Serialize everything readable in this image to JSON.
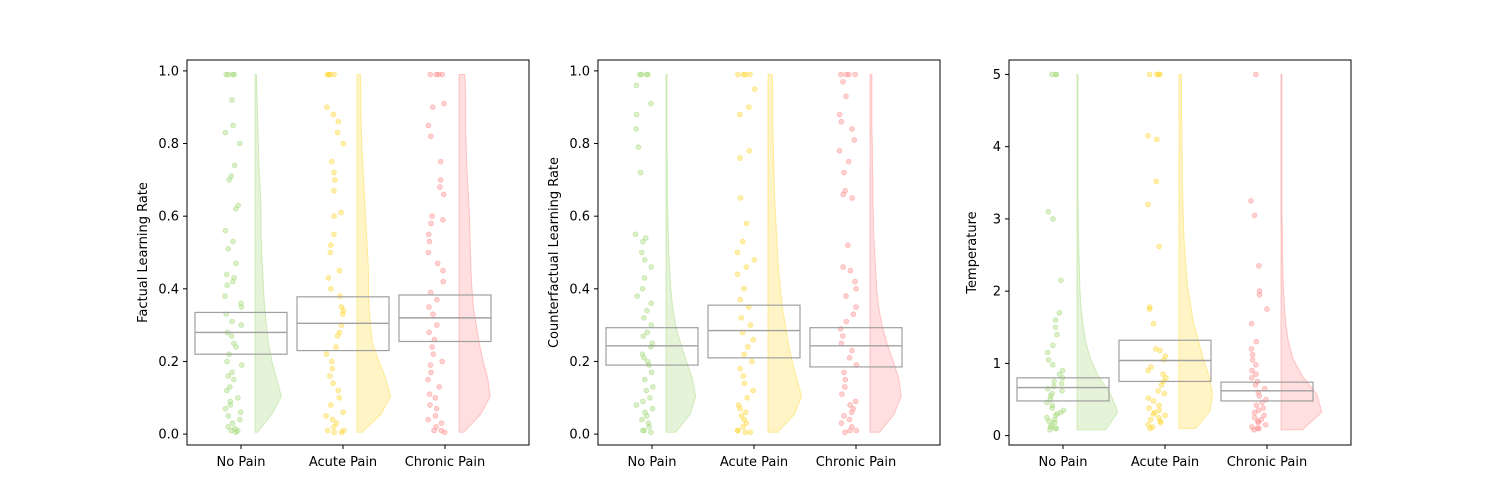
{
  "chart_data": [
    {
      "type": "raincloud",
      "ylabel": "Factual Learning Rate",
      "ylim": [
        -0.03,
        1.03
      ],
      "yticks": [
        0.0,
        0.2,
        0.4,
        0.6,
        0.8,
        1.0
      ],
      "ytick_labels": [
        "0.0",
        "0.2",
        "0.4",
        "0.6",
        "0.8",
        "1.0"
      ],
      "categories": [
        "No Pain",
        "Acute Pain",
        "Chronic Pain"
      ],
      "groups": [
        {
          "name": "No Pain",
          "color": "#a3d977",
          "q1": 0.22,
          "median": 0.28,
          "q3": 0.335,
          "points": [
            0.99,
            0.99,
            0.99,
            0.99,
            0.92,
            0.85,
            0.83,
            0.8,
            0.74,
            0.71,
            0.7,
            0.63,
            0.62,
            0.56,
            0.53,
            0.51,
            0.47,
            0.44,
            0.43,
            0.42,
            0.41,
            0.38,
            0.36,
            0.35,
            0.33,
            0.31,
            0.3,
            0.28,
            0.27,
            0.25,
            0.24,
            0.22,
            0.2,
            0.19,
            0.17,
            0.16,
            0.15,
            0.13,
            0.12,
            0.1,
            0.09,
            0.08,
            0.07,
            0.06,
            0.05,
            0.04,
            0.03,
            0.02,
            0.015,
            0.01,
            0.01,
            0.005
          ],
          "density": [
            0.05,
            0.35,
            0.55,
            0.45,
            0.35,
            0.28,
            0.24,
            0.2,
            0.18,
            0.16,
            0.14,
            0.13,
            0.13,
            0.12,
            0.1,
            0.08,
            0.07,
            0.06,
            0.05,
            0.04,
            0.03
          ]
        },
        {
          "name": "Acute Pain",
          "color": "#ffd633",
          "q1": 0.23,
          "median": 0.305,
          "q3": 0.378,
          "points": [
            0.99,
            0.99,
            0.99,
            0.99,
            0.9,
            0.88,
            0.86,
            0.83,
            0.8,
            0.75,
            0.72,
            0.7,
            0.67,
            0.61,
            0.6,
            0.55,
            0.52,
            0.5,
            0.45,
            0.43,
            0.4,
            0.38,
            0.35,
            0.34,
            0.33,
            0.3,
            0.28,
            0.27,
            0.24,
            0.22,
            0.2,
            0.18,
            0.16,
            0.14,
            0.12,
            0.1,
            0.08,
            0.06,
            0.05,
            0.04,
            0.03,
            0.02,
            0.01,
            0.01,
            0.005,
            0.005
          ],
          "density": [
            0.1,
            0.5,
            0.7,
            0.6,
            0.45,
            0.32,
            0.28,
            0.25,
            0.24,
            0.24,
            0.22,
            0.2,
            0.18,
            0.16,
            0.14,
            0.12,
            0.1,
            0.09,
            0.08,
            0.08,
            0.07
          ]
        },
        {
          "name": "Chronic Pain",
          "color": "#ff8c8c",
          "q1": 0.255,
          "median": 0.32,
          "q3": 0.383,
          "points": [
            0.99,
            0.99,
            0.99,
            0.99,
            0.91,
            0.9,
            0.85,
            0.82,
            0.75,
            0.7,
            0.68,
            0.66,
            0.6,
            0.59,
            0.58,
            0.55,
            0.53,
            0.5,
            0.47,
            0.45,
            0.42,
            0.39,
            0.37,
            0.35,
            0.33,
            0.3,
            0.28,
            0.26,
            0.24,
            0.22,
            0.2,
            0.19,
            0.17,
            0.15,
            0.13,
            0.11,
            0.1,
            0.08,
            0.07,
            0.05,
            0.04,
            0.03,
            0.02,
            0.01,
            0.01,
            0.005
          ],
          "density": [
            0.1,
            0.45,
            0.65,
            0.6,
            0.5,
            0.42,
            0.36,
            0.3,
            0.27,
            0.25,
            0.24,
            0.23,
            0.22,
            0.2,
            0.18,
            0.16,
            0.15,
            0.14,
            0.14,
            0.14,
            0.12
          ]
        }
      ]
    },
    {
      "type": "raincloud",
      "ylabel": "Counterfactual Learning Rate",
      "ylim": [
        -0.03,
        1.03
      ],
      "yticks": [
        0.0,
        0.2,
        0.4,
        0.6,
        0.8,
        1.0
      ],
      "ytick_labels": [
        "0.0",
        "0.2",
        "0.4",
        "0.6",
        "0.8",
        "1.0"
      ],
      "categories": [
        "No Pain",
        "Acute Pain",
        "Chronic Pain"
      ],
      "groups": [
        {
          "name": "No Pain",
          "color": "#a3d977",
          "q1": 0.19,
          "median": 0.243,
          "q3": 0.293,
          "points": [
            0.99,
            0.99,
            0.99,
            0.99,
            0.96,
            0.91,
            0.88,
            0.84,
            0.79,
            0.72,
            0.55,
            0.54,
            0.53,
            0.5,
            0.48,
            0.46,
            0.43,
            0.4,
            0.38,
            0.36,
            0.34,
            0.32,
            0.3,
            0.28,
            0.27,
            0.25,
            0.24,
            0.22,
            0.21,
            0.2,
            0.19,
            0.17,
            0.15,
            0.13,
            0.12,
            0.1,
            0.09,
            0.08,
            0.07,
            0.06,
            0.05,
            0.04,
            0.03,
            0.02,
            0.01,
            0.01,
            0.005
          ],
          "density": [
            0.2,
            0.5,
            0.62,
            0.55,
            0.42,
            0.3,
            0.2,
            0.14,
            0.1,
            0.08,
            0.06,
            0.05,
            0.04,
            0.03,
            0.03,
            0.03,
            0.02,
            0.02,
            0.02,
            0.02,
            0.02
          ]
        },
        {
          "name": "Acute Pain",
          "color": "#ffd633",
          "q1": 0.21,
          "median": 0.285,
          "q3": 0.355,
          "points": [
            0.99,
            0.99,
            0.99,
            0.99,
            0.95,
            0.9,
            0.88,
            0.78,
            0.76,
            0.65,
            0.58,
            0.53,
            0.5,
            0.48,
            0.46,
            0.44,
            0.4,
            0.37,
            0.35,
            0.32,
            0.3,
            0.28,
            0.26,
            0.24,
            0.22,
            0.2,
            0.18,
            0.16,
            0.14,
            0.12,
            0.1,
            0.08,
            0.07,
            0.06,
            0.05,
            0.04,
            0.03,
            0.02,
            0.01,
            0.01,
            0.005,
            0.005
          ],
          "density": [
            0.2,
            0.55,
            0.7,
            0.6,
            0.5,
            0.42,
            0.36,
            0.3,
            0.26,
            0.22,
            0.2,
            0.18,
            0.16,
            0.14,
            0.13,
            0.12,
            0.11,
            0.1,
            0.1,
            0.1,
            0.09
          ]
        },
        {
          "name": "Chronic Pain",
          "color": "#ff8c8c",
          "q1": 0.185,
          "median": 0.243,
          "q3": 0.293,
          "points": [
            0.99,
            0.99,
            0.99,
            0.99,
            0.97,
            0.93,
            0.88,
            0.86,
            0.84,
            0.81,
            0.78,
            0.75,
            0.72,
            0.67,
            0.66,
            0.65,
            0.52,
            0.46,
            0.45,
            0.42,
            0.4,
            0.38,
            0.35,
            0.33,
            0.31,
            0.29,
            0.27,
            0.25,
            0.23,
            0.21,
            0.19,
            0.17,
            0.15,
            0.13,
            0.11,
            0.09,
            0.08,
            0.07,
            0.06,
            0.05,
            0.04,
            0.03,
            0.02,
            0.01,
            0.01,
            0.005
          ],
          "density": [
            0.2,
            0.5,
            0.65,
            0.6,
            0.48,
            0.35,
            0.25,
            0.18,
            0.14,
            0.12,
            0.1,
            0.08,
            0.07,
            0.06,
            0.06,
            0.05,
            0.05,
            0.04,
            0.04,
            0.04,
            0.04
          ]
        }
      ]
    },
    {
      "type": "raincloud",
      "ylabel": "Temperature",
      "ylim": [
        -0.13,
        5.2
      ],
      "yticks": [
        0,
        1,
        2,
        3,
        4,
        5
      ],
      "ytick_labels": [
        "0",
        "1",
        "2",
        "3",
        "4",
        "5"
      ],
      "categories": [
        "No Pain",
        "Acute Pain",
        "Chronic Pain"
      ],
      "groups": [
        {
          "name": "No Pain",
          "color": "#a3d977",
          "q1": 0.48,
          "median": 0.665,
          "q3": 0.8,
          "points": [
            5.0,
            5.0,
            5.0,
            3.1,
            3.0,
            2.15,
            1.7,
            1.6,
            1.5,
            1.4,
            1.25,
            1.15,
            1.05,
            0.98,
            0.9,
            0.85,
            0.8,
            0.75,
            0.72,
            0.68,
            0.65,
            0.62,
            0.58,
            0.55,
            0.5,
            0.46,
            0.42,
            0.38,
            0.35,
            0.32,
            0.3,
            0.28,
            0.25,
            0.22,
            0.2,
            0.18,
            0.15,
            0.12,
            0.1,
            0.1,
            0.08
          ],
          "density": [
            0.6,
            0.85,
            0.7,
            0.45,
            0.28,
            0.18,
            0.12,
            0.08,
            0.06,
            0.05,
            0.04,
            0.03,
            0.03,
            0.02,
            0.02,
            0.02,
            0.02,
            0.02,
            0.02,
            0.02,
            0.02
          ]
        },
        {
          "name": "Acute Pain",
          "color": "#ffd633",
          "q1": 0.75,
          "median": 1.04,
          "q3": 1.32,
          "points": [
            5.0,
            5.0,
            5.0,
            5.0,
            4.15,
            4.1,
            3.52,
            3.2,
            2.62,
            1.78,
            1.75,
            1.55,
            1.2,
            1.18,
            1.1,
            1.05,
            0.95,
            0.9,
            0.85,
            0.8,
            0.75,
            0.7,
            0.62,
            0.58,
            0.52,
            0.48,
            0.42,
            0.38,
            0.35,
            0.32,
            0.3,
            0.28,
            0.25,
            0.22,
            0.2,
            0.18,
            0.15,
            0.12,
            0.1
          ],
          "density": [
            0.35,
            0.65,
            0.7,
            0.62,
            0.5,
            0.4,
            0.3,
            0.24,
            0.18,
            0.15,
            0.12,
            0.1,
            0.09,
            0.08,
            0.07,
            0.07,
            0.06,
            0.06,
            0.05,
            0.05,
            0.05
          ]
        },
        {
          "name": "Chronic Pain",
          "color": "#ff8c8c",
          "q1": 0.48,
          "median": 0.62,
          "q3": 0.74,
          "points": [
            5.0,
            3.25,
            3.05,
            2.35,
            2.0,
            1.95,
            1.75,
            1.55,
            1.3,
            1.2,
            1.12,
            1.05,
            0.98,
            0.9,
            0.85,
            0.8,
            0.75,
            0.7,
            0.65,
            0.6,
            0.55,
            0.5,
            0.46,
            0.42,
            0.38,
            0.35,
            0.32,
            0.28,
            0.25,
            0.22,
            0.2,
            0.18,
            0.15,
            0.12,
            0.1,
            0.1,
            0.08
          ],
          "density": [
            0.45,
            0.85,
            0.75,
            0.45,
            0.25,
            0.15,
            0.1,
            0.07,
            0.05,
            0.04,
            0.03,
            0.03,
            0.02,
            0.02,
            0.02,
            0.02,
            0.02,
            0.02,
            0.02,
            0.02,
            0.02
          ]
        }
      ]
    }
  ]
}
